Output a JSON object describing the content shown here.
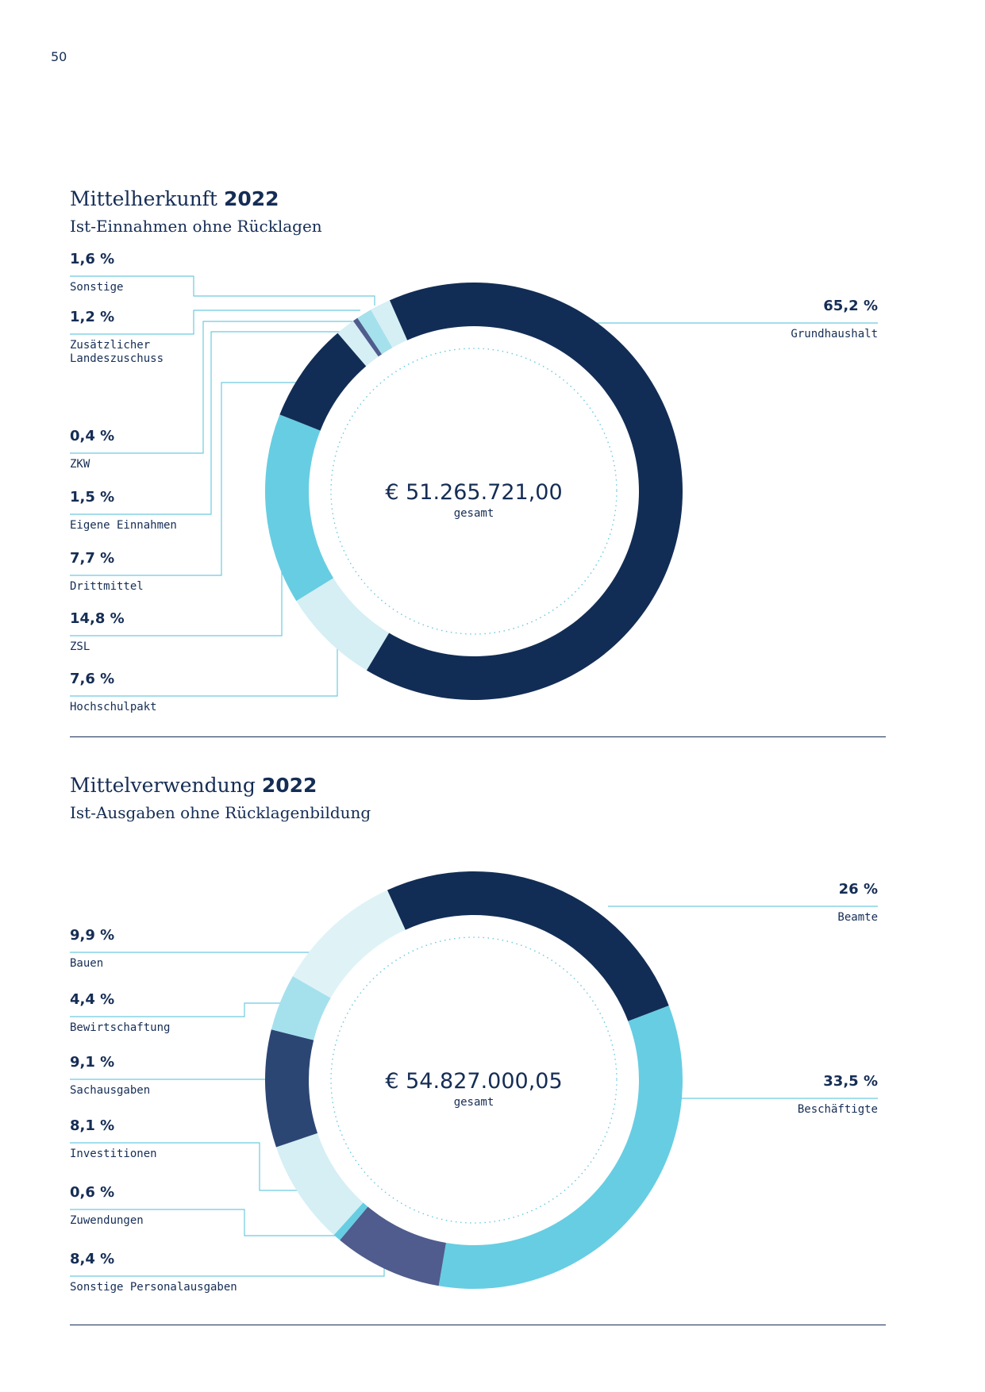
{
  "page_number": "50",
  "colors": {
    "navy": "#122d55",
    "slate": "#2c4674",
    "purple": "#4f5c8d",
    "cyan": "#67cde2",
    "light_cyan": "#a5e1ec",
    "pale": "#d5eff4",
    "leader": "#6dcbe0"
  },
  "chart_data": [
    {
      "type": "donut",
      "title": "Mittelherkunft",
      "title_year": "2022",
      "subtitle": "Ist-Einnahmen ohne Rücklagen",
      "total": "€ 51.265.721,00",
      "total_caption": "gesamt",
      "series": [
        {
          "name": "Grundhaushalt",
          "value": 65.2,
          "label": "65,2 %",
          "color": "#122d55"
        },
        {
          "name": "Hochschulpakt",
          "value": 7.6,
          "label": "7,6 %",
          "color": "#d5eff4"
        },
        {
          "name": "ZSL",
          "value": 14.8,
          "label": "14,8 %",
          "color": "#67cde2"
        },
        {
          "name": "Drittmittel",
          "value": 7.7,
          "label": "7,7 %",
          "color": "#122d55"
        },
        {
          "name": "Eigene Einnahmen",
          "value": 1.5,
          "label": "1,5 %",
          "color": "#d5eff4"
        },
        {
          "name": "ZKW",
          "value": 0.4,
          "label": "0,4 %",
          "color": "#4f5c8d"
        },
        {
          "name": "Zusätzlicher Landeszuschuss",
          "value": 1.2,
          "label": "1,2 %",
          "color": "#a5e1ec"
        },
        {
          "name": "Sonstige",
          "value": 1.6,
          "label": "1,6 %",
          "color": "#d5eff4"
        }
      ]
    },
    {
      "type": "donut",
      "title": "Mittelverwendung",
      "title_year": "2022",
      "subtitle": "Ist-Ausgaben ohne Rücklagenbildung",
      "total": "€ 54.827.000,05",
      "total_caption": "gesamt",
      "series": [
        {
          "name": "Beamte",
          "value": 26,
          "label": "26 %",
          "color": "#122d55"
        },
        {
          "name": "Beschäftigte",
          "value": 33.5,
          "label": "33,5 %",
          "color": "#67cde2"
        },
        {
          "name": "Sonstige Personalausgaben",
          "value": 8.4,
          "label": "8,4 %",
          "color": "#4f5c8d"
        },
        {
          "name": "Zuwendungen",
          "value": 0.6,
          "label": "0,6 %",
          "color": "#67cde2"
        },
        {
          "name": "Investitionen",
          "value": 8.1,
          "label": "8,1 %",
          "color": "#d5eff4"
        },
        {
          "name": "Sachausgaben",
          "value": 9.1,
          "label": "9,1 %",
          "color": "#2c4674"
        },
        {
          "name": "Bewirtschaftung",
          "value": 4.4,
          "label": "4,4 %",
          "color": "#a5e1ec"
        },
        {
          "name": "Bauen",
          "value": 9.9,
          "label": "9,9 %",
          "color": "#dff3f7"
        }
      ]
    }
  ]
}
